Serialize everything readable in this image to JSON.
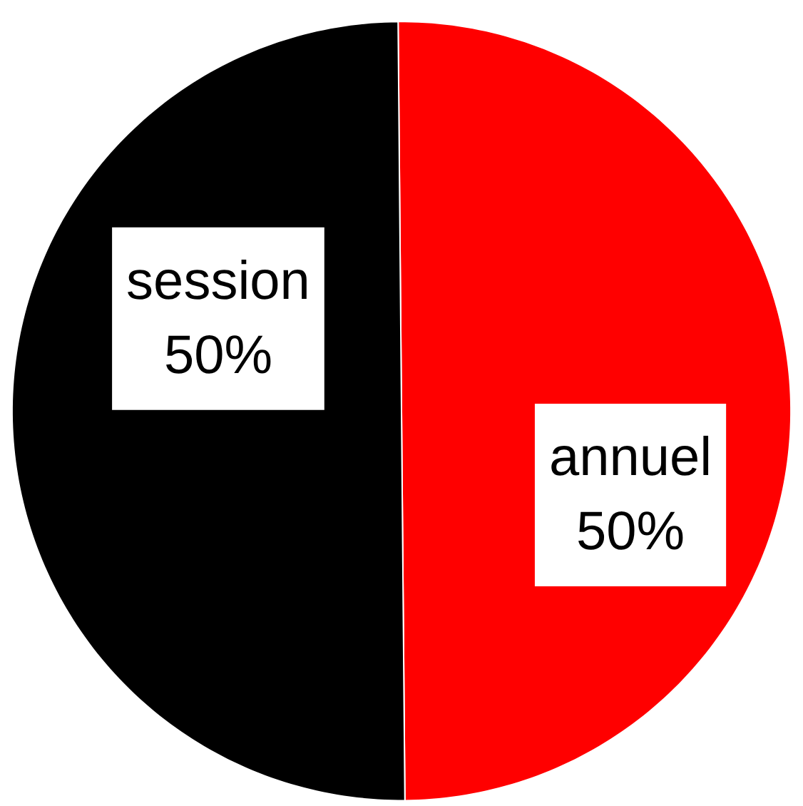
{
  "chart_data": {
    "type": "pie",
    "categories": [
      "annuel",
      "session"
    ],
    "values": [
      50,
      50
    ],
    "colors": [
      "#ff0000",
      "#000000"
    ],
    "value_labels": [
      "50%",
      "50%"
    ]
  }
}
